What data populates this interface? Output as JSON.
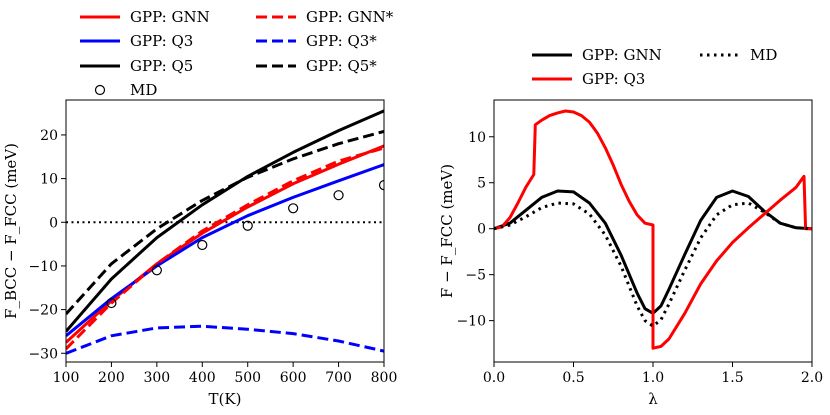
{
  "chart_data": [
    {
      "type": "line",
      "panel": "left",
      "title": "",
      "xlabel": "T(K)",
      "ylabel": "F_BCC − F_FCC (meV)",
      "xlim": [
        100,
        800
      ],
      "ylim": [
        -32,
        28
      ],
      "xticks": [
        100,
        200,
        300,
        400,
        500,
        600,
        700,
        800
      ],
      "yticks": [
        -30,
        -20,
        -10,
        0,
        10,
        20
      ],
      "grid": false,
      "legend_position": "above-left",
      "series": [
        {
          "name": "GPP: GNN",
          "color": "#ff0000",
          "style": "solid",
          "x": [
            100,
            200,
            300,
            400,
            500,
            600,
            700,
            800
          ],
          "y": [
            -27.5,
            -18.0,
            -9.5,
            -2.5,
            3.5,
            8.8,
            13.3,
            17.5
          ]
        },
        {
          "name": "GPP: Q3",
          "color": "#0000ff",
          "style": "solid",
          "x": [
            100,
            200,
            300,
            400,
            500,
            600,
            700,
            800
          ],
          "y": [
            -26.0,
            -17.5,
            -10.0,
            -3.5,
            1.5,
            5.7,
            9.5,
            13.2
          ]
        },
        {
          "name": "GPP: Q5",
          "color": "#000000",
          "style": "solid",
          "x": [
            100,
            200,
            300,
            400,
            500,
            600,
            700,
            800
          ],
          "y": [
            -25.0,
            -13.0,
            -3.5,
            4.0,
            10.5,
            16.0,
            21.0,
            25.5
          ]
        },
        {
          "name": "GPP: GNN*",
          "color": "#ff0000",
          "style": "dashed",
          "x": [
            100,
            200,
            300,
            400,
            500,
            600,
            700,
            800
          ],
          "y": [
            -29.0,
            -18.5,
            -9.5,
            -2.0,
            4.0,
            9.5,
            14.0,
            17.0
          ]
        },
        {
          "name": "GPP: Q3*",
          "color": "#0000ff",
          "style": "dashed",
          "x": [
            100,
            200,
            300,
            400,
            500,
            600,
            700,
            800
          ],
          "y": [
            -30.0,
            -26.0,
            -24.2,
            -23.8,
            -24.5,
            -25.5,
            -27.2,
            -29.5
          ]
        },
        {
          "name": "GPP: Q5*",
          "color": "#000000",
          "style": "dashed",
          "x": [
            100,
            200,
            300,
            400,
            500,
            600,
            700,
            800
          ],
          "y": [
            -21.0,
            -9.5,
            -1.5,
            5.0,
            10.3,
            14.5,
            18.0,
            20.8
          ]
        },
        {
          "name": "MD",
          "color": "#000000",
          "style": "markers-open-circle",
          "x": [
            200,
            300,
            400,
            500,
            600,
            700,
            800
          ],
          "y": [
            -18.5,
            -11.0,
            -5.2,
            -0.8,
            3.2,
            6.2,
            8.5
          ]
        }
      ],
      "reference_line": {
        "y": 0,
        "style": "dotted",
        "color": "#000000"
      }
    },
    {
      "type": "line",
      "panel": "right",
      "title": "",
      "xlabel": "λ",
      "ylabel": "F − F_FCC (meV)",
      "xlim": [
        0.0,
        2.0
      ],
      "ylim": [
        -14.5,
        14.0
      ],
      "xticks": [
        0.0,
        0.5,
        1.0,
        1.5,
        2.0
      ],
      "yticks": [
        -10,
        -5,
        0,
        5,
        10
      ],
      "grid": false,
      "legend_position": "above",
      "series": [
        {
          "name": "GPP: GNN",
          "color": "#000000",
          "style": "solid",
          "x": [
            0.0,
            0.1,
            0.2,
            0.3,
            0.4,
            0.5,
            0.6,
            0.7,
            0.8,
            0.9,
            0.95,
            1.0,
            1.05,
            1.1,
            1.2,
            1.3,
            1.4,
            1.5,
            1.6,
            1.7,
            1.8,
            1.9,
            2.0
          ],
          "y": [
            0.0,
            0.6,
            2.0,
            3.4,
            4.1,
            4.0,
            2.8,
            0.6,
            -2.9,
            -7.0,
            -8.7,
            -9.2,
            -8.4,
            -6.6,
            -2.8,
            0.9,
            3.4,
            4.1,
            3.5,
            1.9,
            0.6,
            0.1,
            0.0
          ]
        },
        {
          "name": "GPP: Q3",
          "color": "#ff0000",
          "style": "solid",
          "x": [
            0.0,
            0.05,
            0.1,
            0.15,
            0.2,
            0.25,
            0.26,
            0.3,
            0.35,
            0.4,
            0.45,
            0.5,
            0.55,
            0.6,
            0.65,
            0.7,
            0.75,
            0.8,
            0.85,
            0.9,
            0.95,
            1.0,
            1.0,
            1.05,
            1.1,
            1.2,
            1.3,
            1.4,
            1.5,
            1.6,
            1.7,
            1.8,
            1.9,
            1.95,
            1.96,
            2.0
          ],
          "y": [
            0.0,
            0.2,
            1.2,
            2.8,
            4.5,
            5.9,
            11.3,
            11.8,
            12.3,
            12.6,
            12.8,
            12.7,
            12.3,
            11.6,
            10.4,
            8.8,
            6.9,
            4.8,
            3.0,
            1.5,
            0.6,
            0.4,
            -13.0,
            -12.8,
            -12.0,
            -9.2,
            -6.0,
            -3.5,
            -1.5,
            0.1,
            1.6,
            3.1,
            4.5,
            5.7,
            0.0,
            0.0
          ]
        },
        {
          "name": "MD",
          "color": "#000000",
          "style": "dotted",
          "x": [
            0.0,
            0.1,
            0.2,
            0.3,
            0.4,
            0.5,
            0.6,
            0.7,
            0.8,
            0.9,
            0.95,
            1.0,
            1.05,
            1.1,
            1.2,
            1.3,
            1.4,
            1.5,
            1.6,
            1.7,
            1.8,
            1.9,
            2.0
          ],
          "y": [
            0.0,
            0.4,
            1.3,
            2.3,
            2.8,
            2.7,
            1.6,
            -0.7,
            -4.1,
            -8.4,
            -10.0,
            -10.6,
            -9.9,
            -8.2,
            -4.5,
            -1.0,
            1.5,
            2.6,
            2.8,
            1.8,
            0.6,
            0.1,
            0.0
          ]
        }
      ]
    }
  ]
}
